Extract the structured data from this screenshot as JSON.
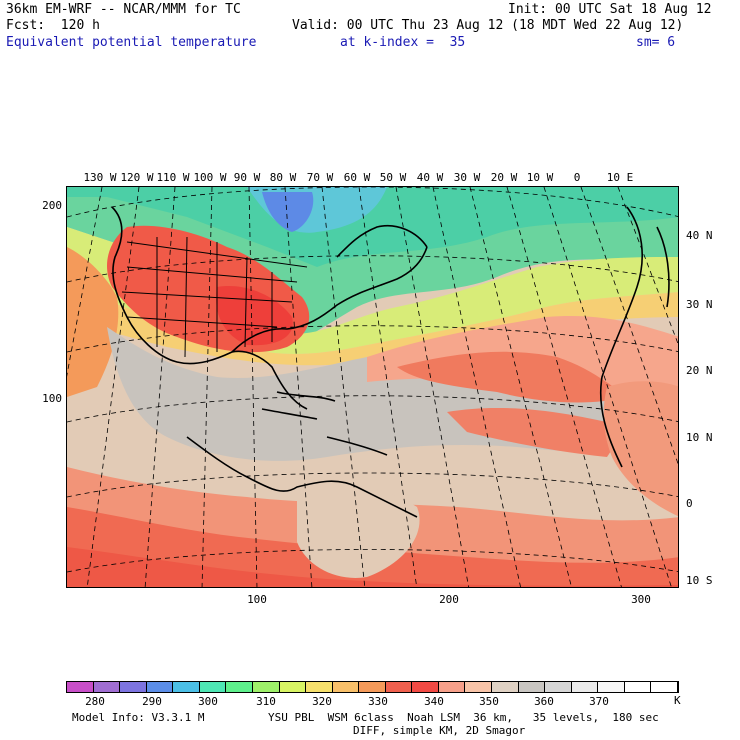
{
  "header": {
    "line1_left": "36km EM-WRF -- NCAR/MMM for TC",
    "line1_right": "Init: 00 UTC Sat 18 Aug 12",
    "line2_left": "Fcst:  120 h",
    "line2_right": "Valid: 00 UTC Thu 23 Aug 12 (18 MDT Wed 22 Aug 12)",
    "line3_field": "Equivalent potential temperature",
    "line3_level": "at k-index =  35",
    "line3_smooth": "sm= 6"
  },
  "map": {
    "longitude_labels": [
      "130 W",
      "120 W",
      "110 W",
      "100 W",
      "90 W",
      "80 W",
      "70 W",
      "60 W",
      "50 W",
      "40 W",
      "30 W",
      "20 W",
      "10 W",
      "0",
      "10 E"
    ],
    "latitude_labels": [
      "40 N",
      "30 N",
      "20 N",
      "10 N",
      "0",
      "10 S"
    ],
    "y_grid_ticks": [
      "200",
      "100"
    ],
    "x_grid_ticks": [
      "100",
      "200",
      "300"
    ]
  },
  "colorbar": {
    "colors": [
      "#c84fc8",
      "#a06ed2",
      "#7d74e0",
      "#5c8ee8",
      "#4cbfe6",
      "#4ee6b4",
      "#5ef08c",
      "#9ef06a",
      "#d8f464",
      "#f6e06c",
      "#f8c06a",
      "#f49a5a",
      "#f0604e",
      "#f24a44",
      "#f6a08a",
      "#f8c4a8",
      "#e0d2c4",
      "#c9c6c2",
      "#d6d6d6",
      "#eaeaea",
      "#f6f6f6",
      "#ffffff",
      "#ffffff"
    ],
    "labels": [
      "280",
      "290",
      "300",
      "310",
      "320",
      "330",
      "340",
      "350",
      "360",
      "370"
    ],
    "unit": "K"
  },
  "footer": {
    "line1_left": "Model Info: V3.3.1 M",
    "line1_right": "YSU PBL  WSM 6class  Noah LSM  36 km,   35 levels,  180 sec",
    "line2": "DIFF, simple KM, 2D Smagor"
  }
}
